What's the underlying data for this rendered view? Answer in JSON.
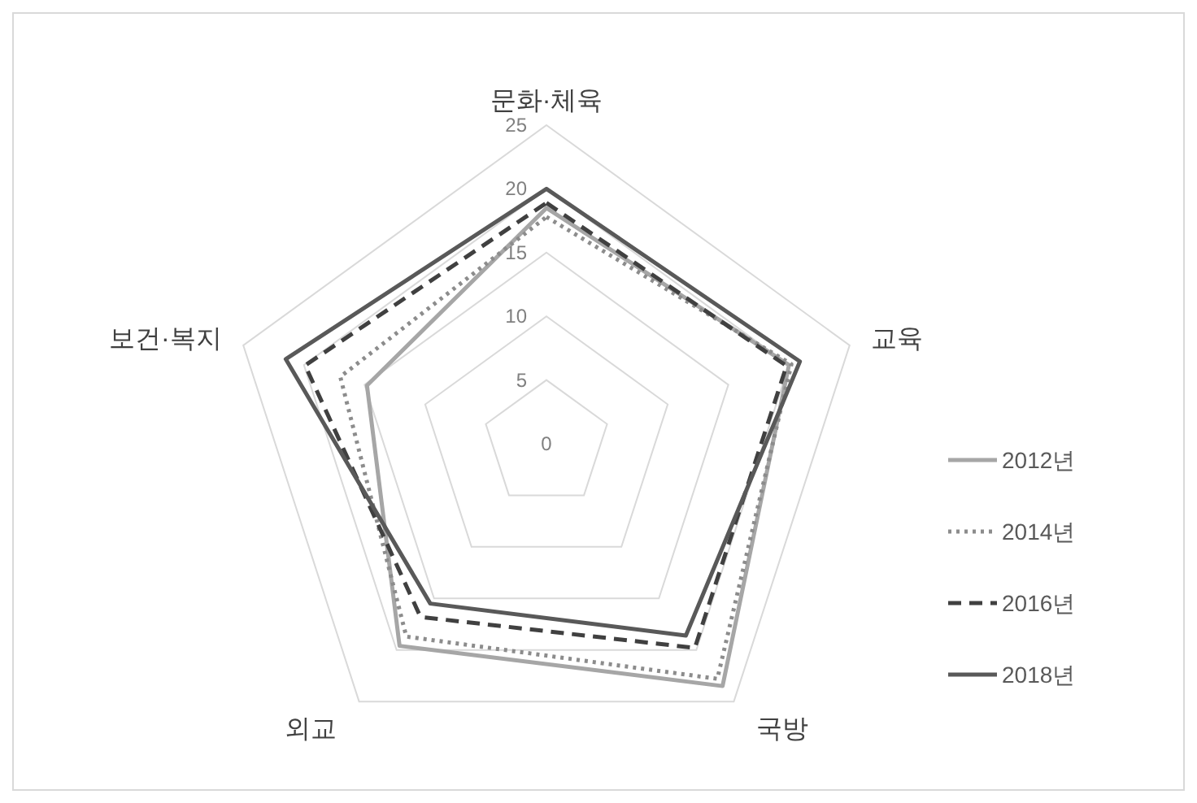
{
  "chart_data": {
    "type": "radar",
    "categories": [
      "문화·체육",
      "교육",
      "국방",
      "외교",
      "보건·복지"
    ],
    "series": [
      {
        "name": "2012년",
        "color": "#a6a6a6",
        "line_style": "solid",
        "values": [
          18.5,
          20.0,
          23.5,
          19.6,
          14.8
        ]
      },
      {
        "name": "2014년",
        "color": "#8c8c8c",
        "line_style": "dotted",
        "values": [
          17.8,
          20.2,
          22.8,
          18.7,
          17.0
        ]
      },
      {
        "name": "2016년",
        "color": "#404040",
        "line_style": "dashed",
        "values": [
          18.9,
          19.8,
          19.8,
          16.8,
          19.9
        ]
      },
      {
        "name": "2018년",
        "color": "#595959",
        "line_style": "solid",
        "values": [
          20.0,
          20.9,
          18.6,
          15.5,
          21.5
        ]
      }
    ],
    "ylim": [
      0,
      25
    ],
    "yticks": [
      0,
      5,
      10,
      15,
      20,
      25
    ],
    "grid": true,
    "legend": "right"
  }
}
